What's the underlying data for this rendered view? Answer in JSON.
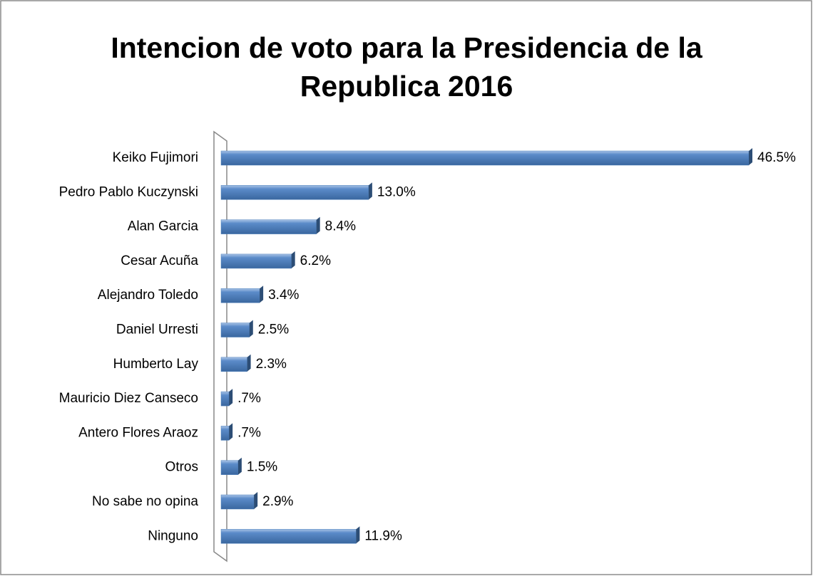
{
  "chart_data": {
    "type": "bar",
    "orientation": "horizontal",
    "title": "Intencion de voto para la Presidencia de la Republica 2016",
    "categories": [
      "Keiko Fujimori",
      "Pedro Pablo Kuczynski",
      "Alan Garcia",
      "Cesar Acuña",
      "Alejandro Toledo",
      "Daniel Urresti",
      "Humberto Lay",
      "Mauricio Diez Canseco",
      "Antero Flores Araoz",
      "Otros",
      "No sabe no opina",
      "Ninguno"
    ],
    "values": [
      46.5,
      13.0,
      8.4,
      6.2,
      3.4,
      2.5,
      2.3,
      0.7,
      0.7,
      1.5,
      2.9,
      11.9
    ],
    "value_labels": [
      "46.5%",
      "13.0%",
      "8.4%",
      "6.2%",
      "3.4%",
      "2.5%",
      "2.3%",
      ".7%",
      ".7%",
      "1.5%",
      "2.9%",
      "11.9%"
    ],
    "color": "#4f81bd"
  }
}
